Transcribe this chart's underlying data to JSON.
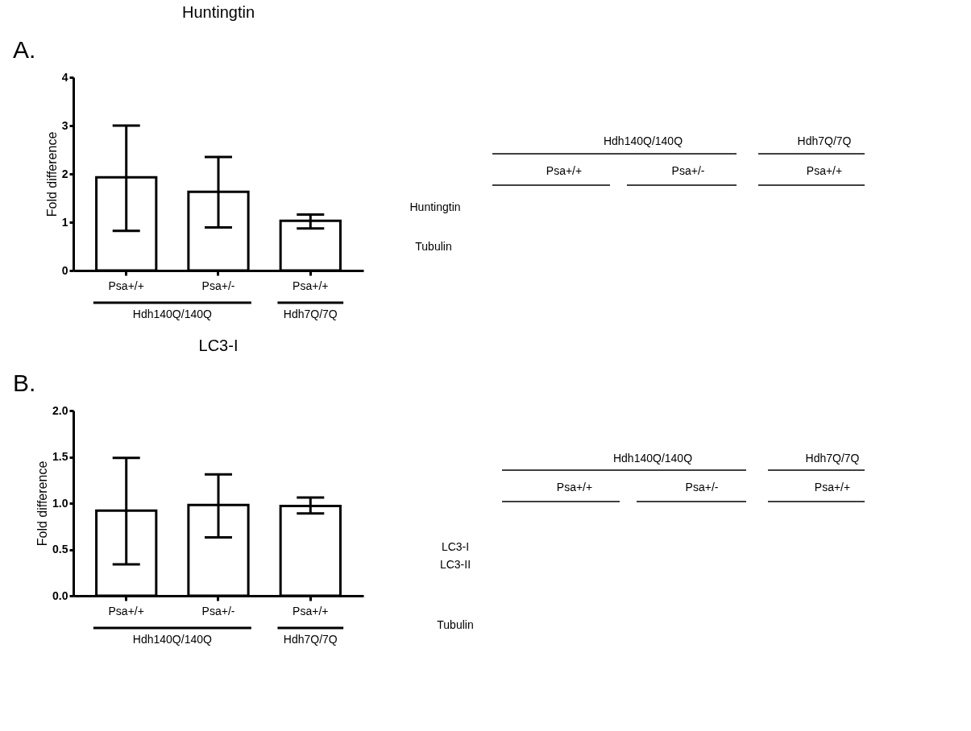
{
  "chart_data": [
    {
      "type": "bar",
      "title": "Huntingtin",
      "ylabel": "Fold difference",
      "categories": [
        "Psa+/+",
        "Psa+/-",
        "Psa+/+"
      ],
      "values": [
        1.93,
        1.63,
        1.03
      ],
      "errors": [
        [
          0.82,
          3.0
        ],
        [
          0.89,
          2.35
        ],
        [
          0.87,
          1.16
        ]
      ],
      "color": "#ffffff",
      "ylim": [
        0,
        4
      ],
      "yticks": [
        0,
        1,
        2,
        3,
        4
      ],
      "grid": false,
      "annotations": [
        "A.",
        "Hdh140Q/140Q",
        "Hdh7Q/7Q"
      ]
    },
    {
      "type": "other",
      "annotations": [
        "Hdh140Q/140Q",
        "Hdh7Q/7Q",
        "Psa+/+",
        "Psa+/-",
        "Psa+/+",
        "Huntingtin",
        "Tubulin"
      ]
    },
    {
      "type": "bar",
      "title": "LC3-I",
      "ylabel": "Fold difference",
      "categories": [
        "Psa+/+",
        "Psa+/-",
        "Psa+/+"
      ],
      "values": [
        0.92,
        0.98,
        0.97
      ],
      "errors": [
        [
          0.34,
          1.49
        ],
        [
          0.63,
          1.31
        ],
        [
          0.89,
          1.06
        ]
      ],
      "color": "#ffffff",
      "ylim": [
        0,
        2
      ],
      "yticks": [
        {
          "value": 0,
          "label": "0.0"
        },
        {
          "value": 0.5,
          "label": "0.5"
        },
        {
          "value": 1,
          "label": "1.0"
        },
        {
          "value": 1.5,
          "label": "1.5"
        },
        {
          "value": 2,
          "label": "2.0"
        }
      ],
      "grid": false,
      "annotations": [
        "B.",
        "Hdh140Q/140Q",
        "Hdh7Q/7Q"
      ]
    },
    {
      "type": "other",
      "annotations": [
        "Hdh140Q/140Q",
        "Hdh7Q/7Q",
        "Psa+/+",
        "Psa+/-",
        "Psa+/+",
        "LC3-I",
        "LC3-II",
        "Tubulin"
      ]
    }
  ]
}
